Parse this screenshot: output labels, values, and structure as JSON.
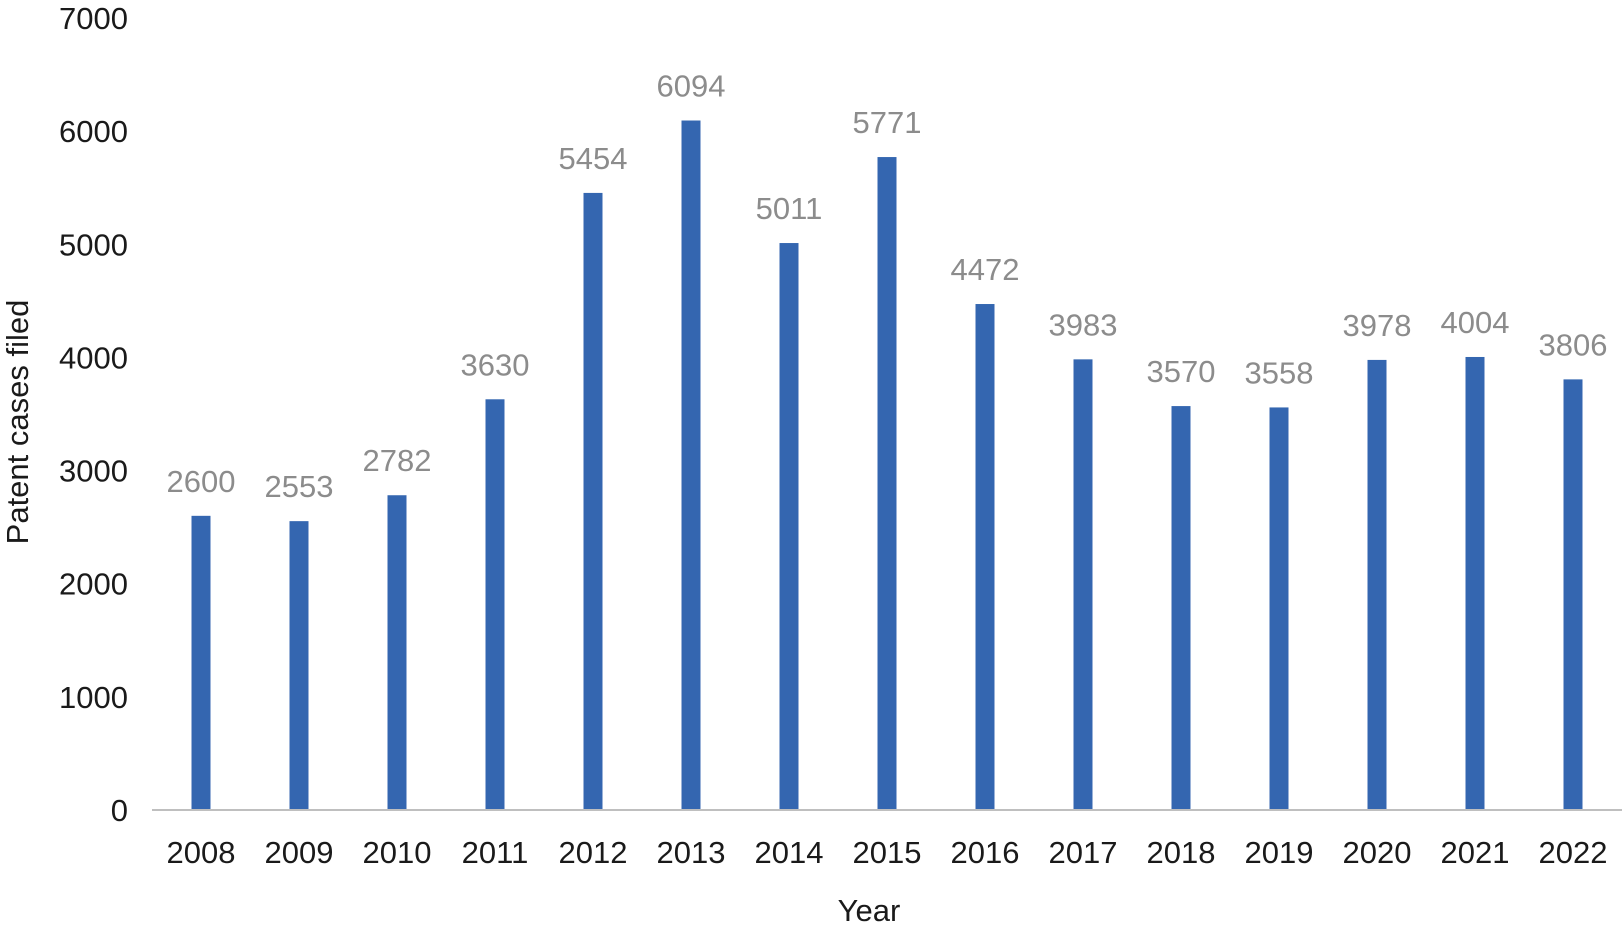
{
  "chart_data": {
    "type": "bar",
    "title": "",
    "xlabel": "Year",
    "ylabel": "Patent cases filed",
    "categories": [
      "2008",
      "2009",
      "2010",
      "2011",
      "2012",
      "2013",
      "2014",
      "2015",
      "2016",
      "2017",
      "2018",
      "2019",
      "2020",
      "2021",
      "2022"
    ],
    "series": [
      {
        "name": "Patent cases filed",
        "values": [
          2600,
          2553,
          2782,
          3630,
          5454,
          6094,
          5011,
          5771,
          4472,
          3983,
          3570,
          3558,
          3978,
          4004,
          3806
        ]
      }
    ],
    "ylim": [
      0,
      7000
    ],
    "yticks": [
      0,
      1000,
      2000,
      3000,
      4000,
      5000,
      6000,
      7000
    ],
    "grid": false,
    "legend": "none",
    "colors": {
      "bar": "#3466B0",
      "data_label": "#8C8C8C",
      "axis_line": "#BFBFBF",
      "text": "#1A1A1A"
    }
  }
}
